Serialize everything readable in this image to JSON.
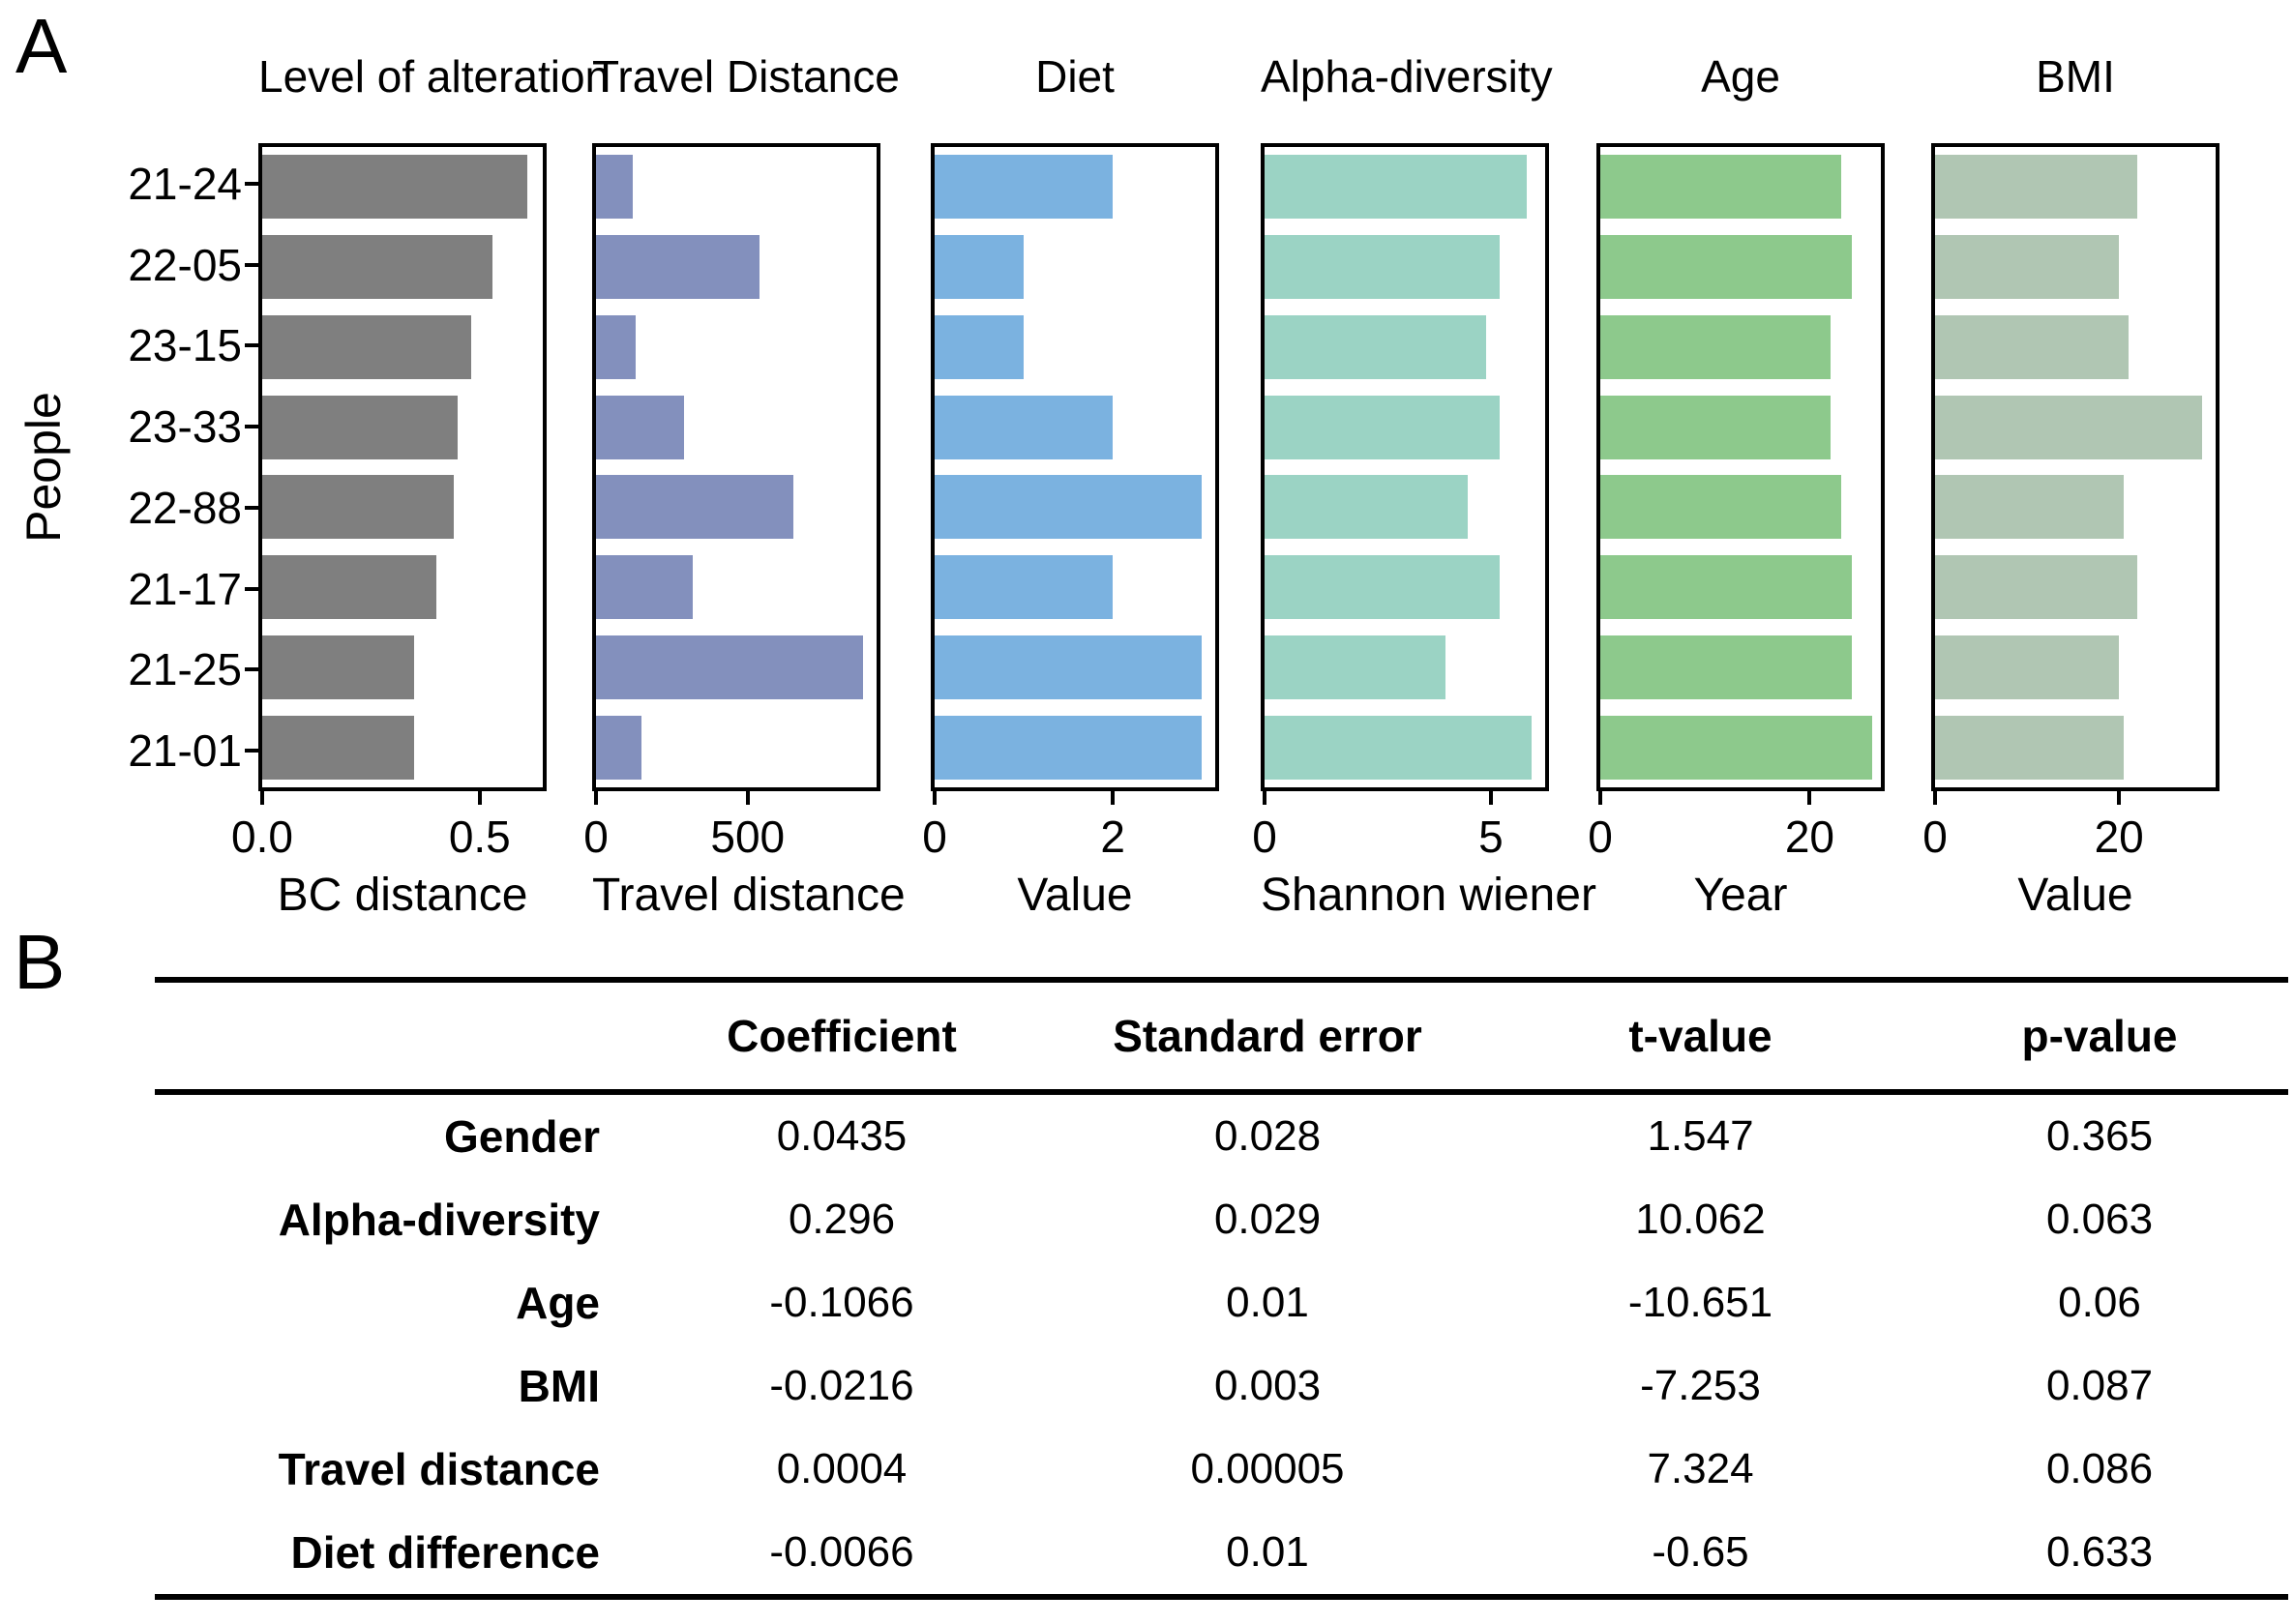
{
  "figure": {
    "panel_a_label": "A",
    "panel_b_label": "B",
    "ylabel": "People"
  },
  "chart_data": [
    {
      "type": "bar",
      "orientation": "horizontal",
      "title": "Level of alteration",
      "xlabel": "BC distance",
      "categories": [
        "21-24",
        "22-05",
        "23-15",
        "23-33",
        "22-88",
        "21-17",
        "21-25",
        "21-01"
      ],
      "values": [
        0.61,
        0.53,
        0.48,
        0.45,
        0.44,
        0.4,
        0.35,
        0.35
      ],
      "xlim": [
        0,
        0.645
      ],
      "xticks": [
        0.0,
        0.5
      ],
      "xtick_labels": [
        "0.0",
        "0.5"
      ],
      "bar_color": "#7f7f7f",
      "grid": false,
      "legend": false
    },
    {
      "type": "bar",
      "orientation": "horizontal",
      "title": "Travel Distance",
      "xlabel": "Travel distance",
      "categories": [
        "21-24",
        "22-05",
        "23-15",
        "23-33",
        "22-88",
        "21-17",
        "21-25",
        "21-01"
      ],
      "values": [
        120,
        540,
        130,
        290,
        650,
        320,
        880,
        150
      ],
      "xlim": [
        0,
        925
      ],
      "xticks": [
        0,
        500
      ],
      "xtick_labels": [
        "0",
        "500"
      ],
      "bar_color": "#8390bd",
      "grid": false,
      "legend": false
    },
    {
      "type": "bar",
      "orientation": "horizontal",
      "title": "Diet",
      "xlabel": "Value",
      "categories": [
        "21-24",
        "22-05",
        "23-15",
        "23-33",
        "22-88",
        "21-17",
        "21-25",
        "21-01"
      ],
      "values": [
        2,
        1,
        1,
        2,
        3,
        2,
        3,
        3
      ],
      "xlim": [
        0,
        3.15
      ],
      "xticks": [
        0,
        2
      ],
      "xtick_labels": [
        "0",
        "2"
      ],
      "bar_color": "#7bb2e0",
      "grid": false,
      "legend": false
    },
    {
      "type": "bar",
      "orientation": "horizontal",
      "title": "Alpha-diversity",
      "xlabel": "Shannon wiener",
      "categories": [
        "21-24",
        "22-05",
        "23-15",
        "23-33",
        "22-88",
        "21-17",
        "21-25",
        "21-01"
      ],
      "values": [
        5.8,
        5.2,
        4.9,
        5.2,
        4.5,
        5.2,
        4.0,
        5.9
      ],
      "xlim": [
        0,
        6.2
      ],
      "xticks": [
        0,
        5
      ],
      "xtick_labels": [
        "0",
        "5"
      ],
      "bar_color": "#9bd3c4",
      "grid": false,
      "legend": false
    },
    {
      "type": "bar",
      "orientation": "horizontal",
      "title": "Age",
      "xlabel": "Year",
      "categories": [
        "21-24",
        "22-05",
        "23-15",
        "23-33",
        "22-88",
        "21-17",
        "21-25",
        "21-01"
      ],
      "values": [
        23,
        24,
        22,
        22,
        23,
        24,
        24,
        26
      ],
      "xlim": [
        0,
        26.8
      ],
      "xticks": [
        0,
        20
      ],
      "xtick_labels": [
        "0",
        "20"
      ],
      "bar_color": "#8dc98c",
      "grid": false,
      "legend": false
    },
    {
      "type": "bar",
      "orientation": "horizontal",
      "title": "BMI",
      "xlabel": "Value",
      "categories": [
        "21-24",
        "22-05",
        "23-15",
        "23-33",
        "22-88",
        "21-17",
        "21-25",
        "21-01"
      ],
      "values": [
        22,
        20,
        21,
        29,
        20.5,
        22,
        20,
        20.5
      ],
      "xlim": [
        0,
        30.5
      ],
      "xticks": [
        0,
        20
      ],
      "xtick_labels": [
        "0",
        "20"
      ],
      "bar_color": "#b0c6b3",
      "grid": false,
      "legend": false
    },
    {
      "type": "table",
      "columns": [
        "",
        "Coefficient",
        "Standard error",
        "t-value",
        "p-value"
      ],
      "rows": [
        [
          "Gender",
          "0.0435",
          "0.028",
          "1.547",
          "0.365"
        ],
        [
          "Alpha-diversity",
          "0.296",
          "0.029",
          "10.062",
          "0.063"
        ],
        [
          "Age",
          "-0.1066",
          "0.01",
          "-10.651",
          "0.06"
        ],
        [
          "BMI",
          "-0.0216",
          "0.003",
          "-7.253",
          "0.087"
        ],
        [
          "Travel distance",
          "0.0004",
          "0.00005",
          "7.324",
          "0.086"
        ],
        [
          "Diet difference",
          "-0.0066",
          "0.01",
          "-0.65",
          "0.633"
        ]
      ]
    }
  ]
}
